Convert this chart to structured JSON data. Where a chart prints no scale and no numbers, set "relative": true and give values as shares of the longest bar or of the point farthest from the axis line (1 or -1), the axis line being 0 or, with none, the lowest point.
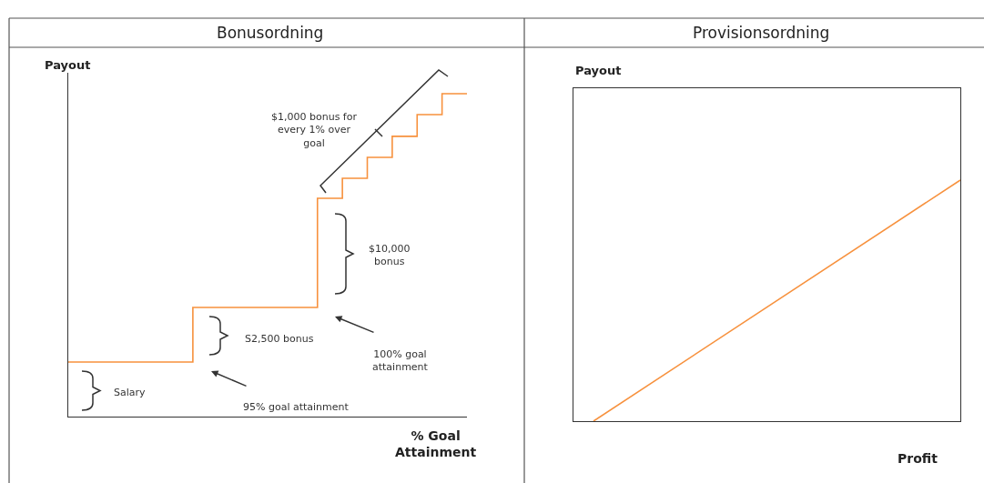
{
  "chart_data": [
    {
      "type": "step",
      "title": "Bonusordning",
      "ylabel": "Payout",
      "xlabel": "% Goal Attainment",
      "relative": true,
      "color": "#f7913d",
      "marker": "none",
      "categories": [
        null,
        null,
        null,
        null,
        null,
        null,
        null,
        null,
        null,
        null,
        null,
        null,
        null,
        null,
        null,
        null,
        null
      ],
      "values": [
        0.169,
        0.169,
        0.169,
        0.169,
        0.169,
        0.338,
        0.338,
        0.338,
        0.338,
        0.338,
        0.676,
        0.738,
        0.803,
        0.868,
        0.935,
        1,
        1
      ],
      "annotations": [
        "$1,000 bonus for every 1% over goal",
        "$10,000 bonus",
        "S2,500 bonus",
        "100% goal attainment",
        "95% goal attainment",
        "Salary"
      ]
    },
    {
      "type": "line",
      "title": "Provisionsordning",
      "ylabel": "Payout",
      "xlabel": "Profit",
      "relative": true,
      "color": "#f7913d",
      "marker": "none",
      "categories": [
        null,
        null
      ],
      "values": [
        0,
        1
      ]
    }
  ]
}
